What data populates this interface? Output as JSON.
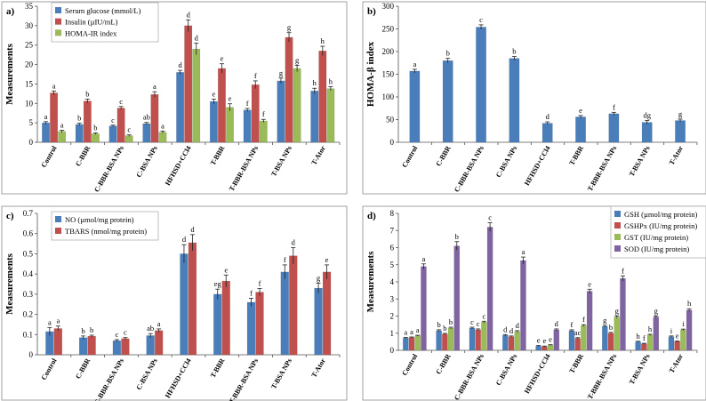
{
  "chart_data": [
    {
      "type": "bar",
      "panel": "a)",
      "ylabel": "Measurements",
      "ylim": [
        0,
        35
      ],
      "yticks": [
        0,
        5,
        10,
        15,
        20,
        25,
        30,
        35
      ],
      "legend_position": "top-left",
      "categories": [
        "Control",
        "C-BBR",
        "C-BBR-BSA NPs",
        "C-BSA NPs",
        "HFHSD+CCl4",
        "T-BBR",
        "T-BBR-BSA NPs",
        "T-BSA NPs",
        "T-Ator"
      ],
      "series": [
        {
          "name": "Serum glucose (mmol/L)",
          "color": "#4a7ebb",
          "values": [
            5.0,
            4.6,
            4.2,
            4.8,
            18.0,
            10.5,
            8.3,
            15.8,
            13.2
          ],
          "errors": [
            0.3,
            0.3,
            0.2,
            0.3,
            0.5,
            0.6,
            0.4,
            0.7,
            0.7
          ],
          "labels": [
            "a",
            "b",
            "c",
            "ab",
            "d",
            "e",
            "f",
            "g",
            "h"
          ]
        },
        {
          "name": "Insulin (µIU/mL)",
          "color": "#c0504d",
          "values": [
            12.7,
            10.6,
            8.8,
            12.3,
            30.0,
            19.0,
            14.8,
            27.0,
            23.5
          ],
          "errors": [
            0.5,
            0.5,
            0.4,
            0.7,
            1.5,
            1.2,
            1.0,
            1.2,
            1.2
          ],
          "labels": [
            "a",
            "b",
            "c",
            "a",
            "d",
            "e",
            "f",
            "g",
            "h"
          ]
        },
        {
          "name": "HOMA-IR index",
          "color": "#9bbb59",
          "values": [
            2.8,
            2.2,
            1.7,
            2.6,
            24.0,
            9.0,
            5.5,
            19.0,
            13.8
          ],
          "errors": [
            0.3,
            0.2,
            0.2,
            0.3,
            1.5,
            0.9,
            0.4,
            0.8,
            0.5
          ],
          "labels": [
            "a",
            "b",
            "c",
            "a",
            "d",
            "e",
            "f",
            "g",
            "h"
          ]
        }
      ]
    },
    {
      "type": "bar",
      "panel": "b)",
      "ylabel": "HOMA-β index",
      "ylim": [
        0,
        300
      ],
      "yticks": [
        0,
        50,
        100,
        150,
        200,
        250,
        300
      ],
      "categories": [
        "Control",
        "C-BBR",
        "C-BBR-BSA NPs",
        "C-BSA NPs",
        "HFHSD+CCl4",
        "T-BBR",
        "T-BBR-BSA NPs",
        "T-BSA NPs",
        "T-Ator"
      ],
      "series": [
        {
          "name": "HOMA-β index",
          "color": "#4a7ebb",
          "values": [
            157,
            180,
            254,
            185,
            42,
            56,
            63,
            44,
            48
          ],
          "errors": [
            4,
            5,
            5,
            4,
            3,
            3,
            3,
            4,
            3
          ],
          "labels": [
            "a",
            "b",
            "c",
            "b",
            "d",
            "e",
            "f",
            "dg",
            "g"
          ]
        }
      ]
    },
    {
      "type": "bar",
      "panel": "c)",
      "ylabel": "Measurements",
      "ylim": [
        0,
        0.7
      ],
      "yticks": [
        0,
        0.1,
        0.2,
        0.3,
        0.4,
        0.5,
        0.6,
        0.7
      ],
      "legend_position": "top-left",
      "categories": [
        "Control",
        "C-BBR",
        "C-BBR-BSA NPs",
        "C-BSA NPs",
        "HFHSD+CCl4",
        "T-BBR",
        "T-BBR-BSA NPs",
        "T-BSA NPs",
        "T-Ator"
      ],
      "series": [
        {
          "name": "NO (µmol/mg protein)",
          "color": "#4a7ebb",
          "values": [
            0.115,
            0.085,
            0.07,
            0.095,
            0.5,
            0.3,
            0.26,
            0.41,
            0.33
          ],
          "errors": [
            0.02,
            0.008,
            0.005,
            0.01,
            0.045,
            0.025,
            0.02,
            0.035,
            0.025
          ],
          "labels": [
            "a",
            "b",
            "c",
            "ab",
            "d",
            "eg",
            "f",
            "f",
            "g"
          ]
        },
        {
          "name": "TBARS (nmol/mg protein)",
          "color": "#c0504d",
          "values": [
            0.13,
            0.092,
            0.08,
            0.12,
            0.555,
            0.365,
            0.31,
            0.49,
            0.41
          ],
          "errors": [
            0.012,
            0.005,
            0.005,
            0.008,
            0.04,
            0.03,
            0.018,
            0.04,
            0.035
          ],
          "labels": [
            "a",
            "b",
            "c",
            "a",
            "d",
            "e",
            "f",
            "d",
            "e"
          ]
        }
      ]
    },
    {
      "type": "bar",
      "panel": "d)",
      "ylabel": "Measurements",
      "ylim": [
        0,
        8
      ],
      "yticks": [
        0,
        1,
        2,
        3,
        4,
        5,
        6,
        7,
        8
      ],
      "legend_position": "top-right",
      "categories": [
        "Control",
        "C-BBR",
        "C-BBR-BSA NPs",
        "C-BSA NPs",
        "HFHSD+CCl4",
        "T-BBR",
        "T-BBR-BSA NPs",
        "T-BSA NPs",
        "T-Ator"
      ],
      "series": [
        {
          "name": "GSH (µmol/mg protein)",
          "color": "#4a7ebb",
          "values": [
            0.72,
            1.15,
            1.3,
            0.88,
            0.25,
            1.15,
            1.4,
            0.5,
            0.8
          ],
          "errors": [
            0.03,
            0.05,
            0.05,
            0.04,
            0.03,
            0.05,
            0.05,
            0.03,
            0.04
          ],
          "labels": [
            "a",
            "b",
            "c",
            "d",
            "e",
            "f",
            "g",
            "h",
            "i"
          ]
        },
        {
          "name": "GSHPx (IU/mg protein)",
          "color": "#c0504d",
          "values": [
            0.75,
            0.95,
            1.2,
            0.8,
            0.22,
            0.7,
            1.0,
            0.38,
            0.52
          ],
          "errors": [
            0.03,
            0.04,
            0.05,
            0.04,
            0.03,
            0.04,
            0.05,
            0.03,
            0.03
          ],
          "labels": [
            "a",
            "b",
            "c",
            "d",
            "e",
            "ac",
            "b",
            "f",
            "e"
          ]
        },
        {
          "name": "GST (IU/mg protein)",
          "color": "#9bbb59",
          "values": [
            0.85,
            1.3,
            1.65,
            1.1,
            0.3,
            1.45,
            1.95,
            0.9,
            1.2
          ],
          "errors": [
            0.03,
            0.05,
            0.05,
            0.05,
            0.03,
            0.05,
            0.06,
            0.04,
            0.04
          ],
          "labels": [
            "a",
            "b",
            "c",
            "d",
            "e",
            "f",
            "g",
            "h",
            "i"
          ]
        },
        {
          "name": "SOD (IU/mg protein)",
          "color": "#8064a2",
          "values": [
            4.9,
            6.1,
            7.2,
            5.25,
            1.2,
            3.45,
            4.2,
            1.95,
            2.35
          ],
          "errors": [
            0.15,
            0.25,
            0.25,
            0.2,
            0.05,
            0.12,
            0.15,
            0.06,
            0.08
          ],
          "labels": [
            "a",
            "b",
            "c",
            "a",
            "d",
            "e",
            "f",
            "g",
            "h"
          ]
        }
      ]
    }
  ]
}
